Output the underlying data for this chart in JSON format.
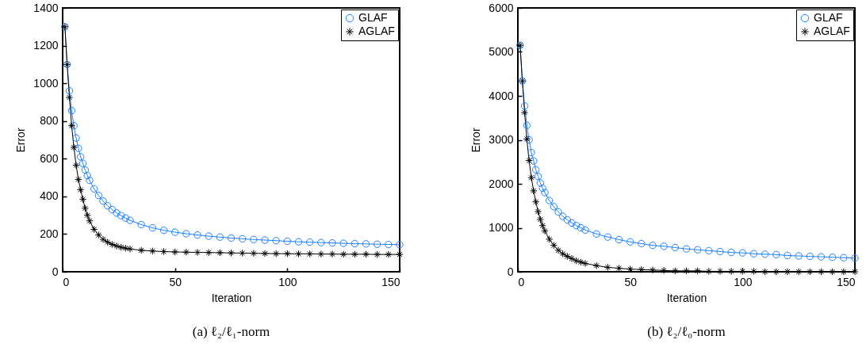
{
  "chart_data": [
    {
      "type": "line",
      "title": "(a)  ℓ₂/ℓ₁-norm",
      "xlabel": "Iteration",
      "ylabel": "Error",
      "xlim": [
        0,
        150
      ],
      "ylim": [
        0,
        1400
      ],
      "xticks": [
        0,
        50,
        100,
        150
      ],
      "yticks": [
        0,
        200,
        400,
        600,
        800,
        1000,
        1200,
        1400
      ],
      "grid": false,
      "legend": "top right",
      "x": [
        1,
        2,
        3,
        4,
        5,
        6,
        7,
        8,
        9,
        10,
        11,
        12,
        14,
        16,
        18,
        20,
        22,
        24,
        26,
        28,
        30,
        35,
        40,
        45,
        50,
        55,
        60,
        65,
        70,
        75,
        80,
        85,
        90,
        95,
        100,
        105,
        110,
        115,
        120,
        125,
        130,
        135,
        140,
        145,
        150
      ],
      "series": [
        {
          "name": "GLAF",
          "color": "#1a80ff",
          "marker": "circle",
          "values": [
            1300,
            1100,
            960,
            855,
            775,
            710,
            655,
            610,
            575,
            540,
            510,
            485,
            440,
            405,
            375,
            350,
            330,
            312,
            298,
            285,
            273,
            250,
            233,
            220,
            210,
            202,
            195,
            189,
            184,
            179,
            175,
            171,
            168,
            165,
            162,
            159,
            157,
            155,
            153,
            151,
            149,
            148,
            146,
            145,
            144
          ]
        },
        {
          "name": "AGLAF",
          "color": "#000000",
          "marker": "cross",
          "values": [
            1300,
            1100,
            925,
            775,
            660,
            565,
            490,
            435,
            385,
            337,
            300,
            270,
            225,
            195,
            172,
            157,
            145,
            137,
            130,
            125,
            121,
            114,
            110,
            107,
            105,
            104,
            103,
            102,
            101,
            100,
            99,
            98,
            97,
            96,
            96,
            95,
            95,
            94,
            94,
            93,
            93,
            93,
            92,
            92,
            92
          ]
        }
      ]
    },
    {
      "type": "line",
      "title": "(b)  ℓ₂/ℓ₀-norm",
      "xlabel": "Iteration",
      "ylabel": "Error",
      "xlim": [
        0,
        150
      ],
      "ylim": [
        0,
        6000
      ],
      "xticks": [
        0,
        50,
        100,
        150
      ],
      "yticks": [
        0,
        1000,
        2000,
        3000,
        4000,
        5000,
        6000
      ],
      "grid": false,
      "legend": "top right",
      "x": [
        1,
        2,
        3,
        4,
        5,
        6,
        7,
        8,
        9,
        10,
        11,
        12,
        14,
        16,
        18,
        20,
        22,
        24,
        26,
        28,
        30,
        35,
        40,
        45,
        50,
        55,
        60,
        65,
        70,
        75,
        80,
        85,
        90,
        95,
        100,
        105,
        110,
        115,
        120,
        125,
        130,
        135,
        140,
        145,
        150
      ],
      "series": [
        {
          "name": "GLAF",
          "color": "#1a80ff",
          "marker": "circle",
          "values": [
            5150,
            4340,
            3770,
            3330,
            3000,
            2710,
            2520,
            2320,
            2170,
            2020,
            1900,
            1800,
            1620,
            1480,
            1360,
            1260,
            1180,
            1110,
            1050,
            1000,
            950,
            860,
            790,
            730,
            680,
            640,
            600,
            580,
            550,
            520,
            500,
            480,
            460,
            440,
            430,
            410,
            400,
            390,
            370,
            360,
            350,
            340,
            330,
            320,
            310
          ]
        },
        {
          "name": "AGLAF",
          "color": "#000000",
          "marker": "cross",
          "values": [
            5150,
            4340,
            3620,
            3020,
            2530,
            2140,
            1840,
            1590,
            1370,
            1190,
            1050,
            930,
            740,
            600,
            490,
            410,
            350,
            300,
            250,
            220,
            190,
            140,
            100,
            80,
            60,
            50,
            40,
            30,
            20,
            20,
            20,
            10,
            10,
            10,
            10,
            10,
            0,
            0,
            0,
            0,
            0,
            0,
            0,
            0,
            0
          ]
        }
      ]
    }
  ]
}
